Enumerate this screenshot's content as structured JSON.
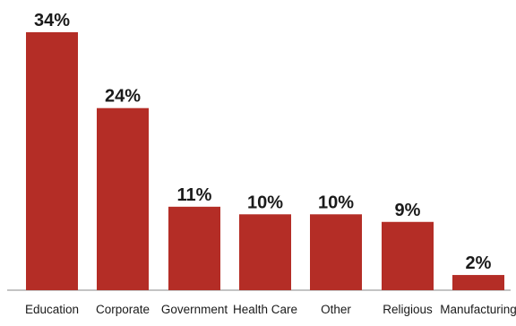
{
  "chart_data": {
    "type": "bar",
    "categories": [
      "Education",
      "Corporate",
      "Government",
      "Health Care",
      "Other",
      "Religious",
      "Manufacturing"
    ],
    "values": [
      34,
      24,
      11,
      10,
      10,
      9,
      2
    ],
    "value_labels": [
      "34%",
      "24%",
      "11%",
      "10%",
      "10%",
      "9%",
      "2%"
    ],
    "unit": "%",
    "title": "",
    "xlabel": "",
    "ylabel": "",
    "ylim": [
      0,
      34
    ],
    "grid": false,
    "legend": "none"
  },
  "colors": {
    "bar": "#b42d26",
    "text": "#1a1a1a",
    "axis": "#8a8a8a"
  }
}
